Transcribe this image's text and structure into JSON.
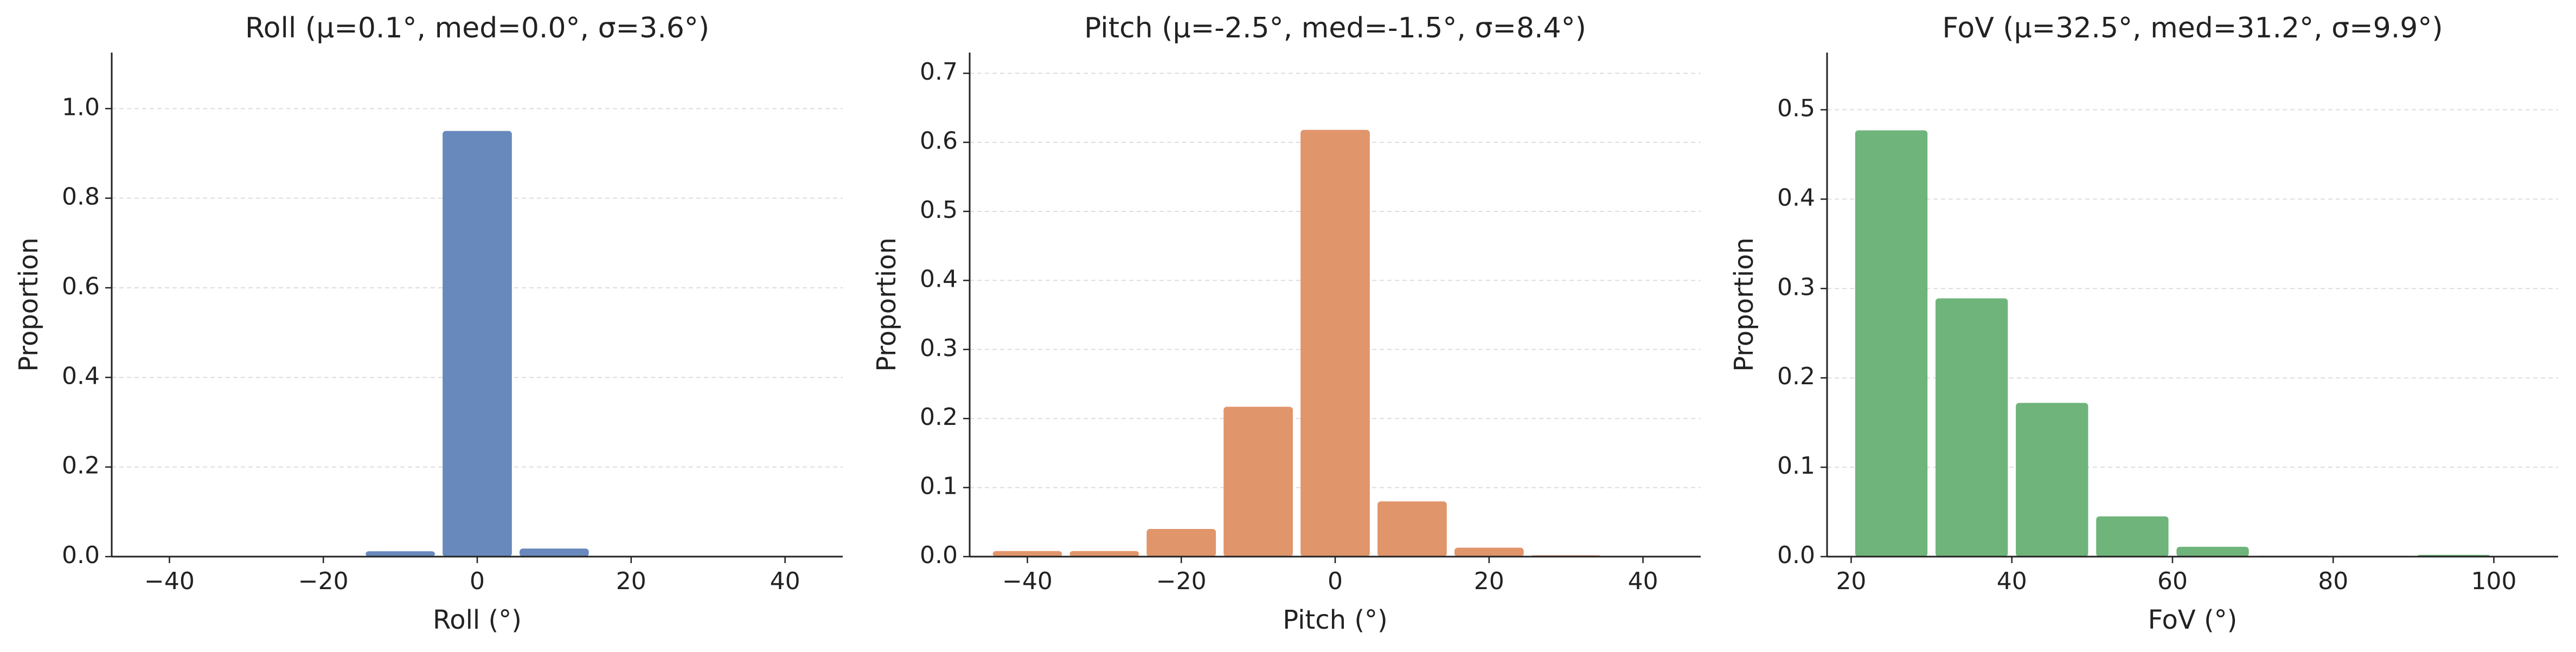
{
  "chart_data": [
    {
      "type": "histogram",
      "title": "Roll  (μ=0.1°, med=0.0°, σ=3.6°)",
      "xlabel": "Roll (°)",
      "ylabel": "Proportion",
      "color": "#6889bc",
      "bins": [
        -45,
        -35,
        -25,
        -15,
        -5,
        5,
        15,
        25,
        35,
        45
      ],
      "values": [
        0.001,
        0.001,
        0.001,
        0.012,
        0.95,
        0.018,
        0.001,
        0.001,
        0.001
      ],
      "xlim": [
        -47.5,
        47.5
      ],
      "ylim": [
        0,
        1.125
      ],
      "grid": true,
      "xticks": [
        {
          "value": -40,
          "label": "−40"
        },
        {
          "value": -20,
          "label": "−20"
        },
        0,
        20,
        40
      ],
      "yticks": [
        {
          "value": 0,
          "label": "0.0"
        },
        0.2,
        0.4,
        0.6,
        0.8,
        {
          "value": 1,
          "label": "1.0"
        }
      ]
    },
    {
      "type": "histogram",
      "title": "Pitch  (μ=-2.5°, med=-1.5°, σ=8.4°)",
      "xlabel": "Pitch (°)",
      "ylabel": "Proportion",
      "color": "#e1956b",
      "bins": [
        -45,
        -35,
        -25,
        -15,
        -5,
        5,
        15,
        25,
        35,
        45
      ],
      "values": [
        0.008,
        0.008,
        0.04,
        0.217,
        0.618,
        0.08,
        0.013,
        0.002,
        0.001
      ],
      "xlim": [
        -47.5,
        47.5
      ],
      "ylim": [
        0,
        0.73
      ],
      "grid": true,
      "xticks": [
        {
          "value": -40,
          "label": "−40"
        },
        {
          "value": -20,
          "label": "−20"
        },
        0,
        20,
        40
      ],
      "yticks": [
        {
          "value": 0,
          "label": "0.0"
        },
        0.1,
        0.2,
        0.3,
        0.4,
        0.5,
        0.6,
        0.7
      ]
    },
    {
      "type": "histogram",
      "title": "FoV  (μ=32.5°, med=31.2°, σ=9.9°)",
      "xlabel": "FoV (°)",
      "ylabel": "Proportion",
      "color": "#6fb47b",
      "bins": [
        20,
        30,
        40,
        50,
        60,
        70,
        80,
        90,
        100
      ],
      "values": [
        0.477,
        0.289,
        0.172,
        0.045,
        0.011,
        0.001,
        0.001,
        0.002
      ],
      "xlim": [
        17,
        108
      ],
      "ylim": [
        0,
        0.564
      ],
      "grid": true,
      "xticks": [
        20,
        40,
        60,
        80,
        100
      ],
      "yticks": [
        {
          "value": 0,
          "label": "0.0"
        },
        0.1,
        0.2,
        0.3,
        0.4,
        0.5
      ]
    }
  ]
}
